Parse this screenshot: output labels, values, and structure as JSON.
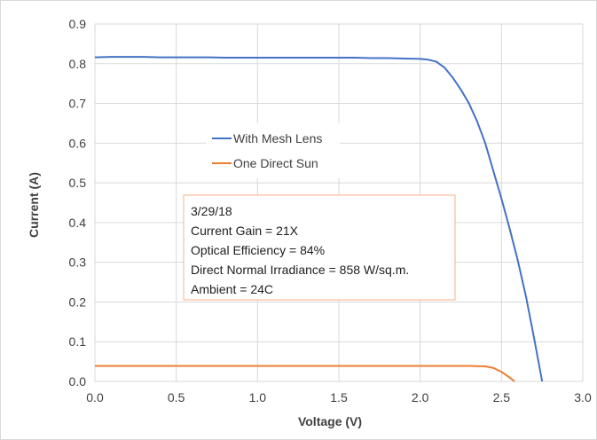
{
  "chart_data": {
    "type": "line",
    "title": "",
    "xlabel": "Voltage (V)",
    "ylabel": "Current (A)",
    "xlim": [
      0,
      3.0
    ],
    "ylim": [
      0,
      0.9
    ],
    "x_ticks": [
      "0.0",
      "0.5",
      "1.0",
      "1.5",
      "2.0",
      "2.5",
      "3.0"
    ],
    "y_ticks": [
      "0.0",
      "0.1",
      "0.2",
      "0.3",
      "0.4",
      "0.5",
      "0.6",
      "0.7",
      "0.8",
      "0.9"
    ],
    "grid": true,
    "legend_position": "center-left",
    "series": [
      {
        "name": "With Mesh Lens",
        "color": "#4472c4",
        "x": [
          0.0,
          0.1,
          0.2,
          0.3,
          0.4,
          0.5,
          0.6,
          0.7,
          0.8,
          0.9,
          1.0,
          1.1,
          1.2,
          1.3,
          1.4,
          1.5,
          1.6,
          1.7,
          1.8,
          1.9,
          2.0,
          2.05,
          2.1,
          2.15,
          2.2,
          2.25,
          2.3,
          2.35,
          2.4,
          2.45,
          2.5,
          2.55,
          2.6,
          2.65,
          2.7,
          2.75
        ],
        "y": [
          0.816,
          0.817,
          0.817,
          0.817,
          0.816,
          0.816,
          0.816,
          0.816,
          0.815,
          0.815,
          0.815,
          0.815,
          0.815,
          0.815,
          0.815,
          0.815,
          0.815,
          0.814,
          0.814,
          0.813,
          0.812,
          0.81,
          0.805,
          0.79,
          0.765,
          0.735,
          0.7,
          0.655,
          0.6,
          0.53,
          0.46,
          0.385,
          0.305,
          0.215,
          0.11,
          0.0
        ]
      },
      {
        "name": "One Direct Sun",
        "color": "#ed7d31",
        "x": [
          0.0,
          0.2,
          0.4,
          0.6,
          0.8,
          1.0,
          1.2,
          1.4,
          1.6,
          1.8,
          2.0,
          2.2,
          2.3,
          2.4,
          2.45,
          2.5,
          2.55,
          2.58
        ],
        "y": [
          0.039,
          0.039,
          0.039,
          0.039,
          0.039,
          0.039,
          0.039,
          0.039,
          0.039,
          0.039,
          0.039,
          0.039,
          0.039,
          0.038,
          0.034,
          0.024,
          0.01,
          0.0
        ]
      }
    ],
    "annotation": {
      "lines": [
        "3/29/18",
        "Current Gain = 21X",
        "Optical Efficiency = 84%",
        "Direct Normal Irradiance = 858 W/sq.m.",
        "Ambient = 24C"
      ],
      "border_color": "#f4b183"
    }
  }
}
